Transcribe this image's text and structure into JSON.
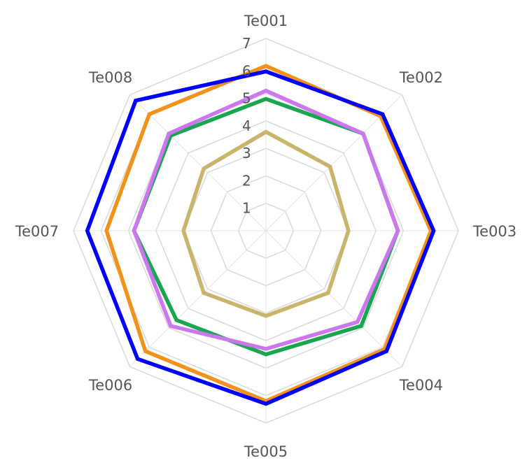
{
  "chart_data": {
    "type": "radar",
    "title": "",
    "categories": [
      "Te001",
      "Te002",
      "Te003",
      "Te004",
      "Te005",
      "Te006",
      "Te007",
      "Te008"
    ],
    "rlim": [
      0,
      7
    ],
    "ticks": [
      "1",
      "2",
      "3",
      "4",
      "5",
      "6",
      "7"
    ],
    "grid": true,
    "legend": "none",
    "series": [
      {
        "color": "#c8b46a",
        "values": [
          3.6,
          3.3,
          3.0,
          3.2,
          3.1,
          3.2,
          3.0,
          3.2
        ]
      },
      {
        "color": "#1aa650",
        "values": [
          4.8,
          5.0,
          4.8,
          4.9,
          4.5,
          4.6,
          4.8,
          4.9
        ]
      },
      {
        "color": "#cc77ee",
        "values": [
          5.1,
          5.0,
          4.8,
          4.7,
          4.3,
          4.9,
          4.8,
          5.0
        ]
      },
      {
        "color": "#f2921a",
        "values": [
          6.0,
          5.9,
          6.0,
          6.1,
          6.2,
          6.2,
          5.8,
          6.0
        ]
      },
      {
        "color": "#0000ff",
        "values": [
          5.8,
          6.0,
          6.1,
          6.2,
          6.3,
          6.6,
          6.5,
          6.7
        ]
      }
    ]
  }
}
